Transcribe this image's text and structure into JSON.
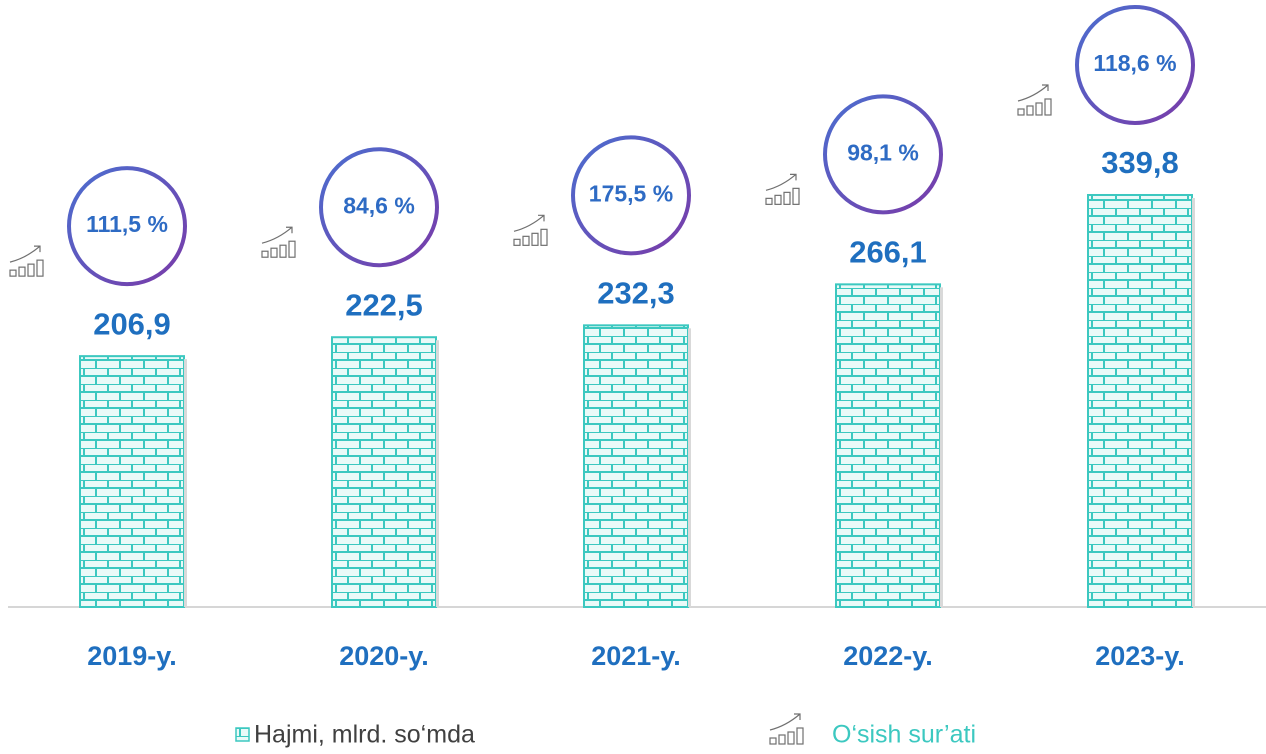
{
  "chart_data": {
    "type": "bar",
    "categories": [
      "2019-y.",
      "2020-y.",
      "2021-y.",
      "2022-y.",
      "2023-y."
    ],
    "series": [
      {
        "name": "Hajmi, mlrd. so‘mda",
        "color": "#3cc8c0",
        "values": [
          206.9,
          222.5,
          232.3,
          266.1,
          339.8
        ],
        "value_labels": [
          "206,9",
          "222,5",
          "232,3",
          "266,1",
          "339,8"
        ]
      },
      {
        "name": "O‘sish sur’ati",
        "color": "#5b4bc4",
        "values": [
          111.5,
          84.6,
          175.5,
          98.1,
          118.6
        ],
        "value_labels": [
          "111,5 %",
          "84,6 %",
          "175,5 %",
          "98,1 %",
          "118,6 %"
        ]
      }
    ],
    "ylim": [
      0,
      400
    ]
  }
}
